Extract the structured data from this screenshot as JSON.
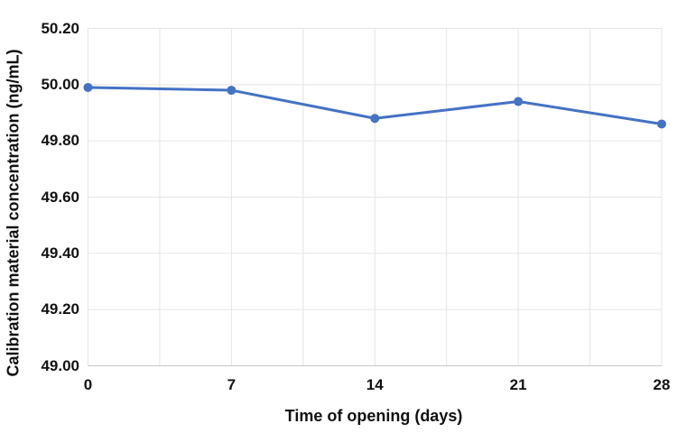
{
  "chart_data": {
    "type": "line",
    "x": [
      0,
      7,
      14,
      21,
      28
    ],
    "values": [
      49.99,
      49.98,
      49.88,
      49.94,
      49.86
    ],
    "xlabel": "Time of opening (days)",
    "ylabel": "Calibration material concentration (ng/mL)",
    "xlim": [
      0,
      28
    ],
    "ylim": [
      49.0,
      50.2
    ],
    "x_ticks": [
      0,
      7,
      14,
      21,
      28
    ],
    "x_tick_labels": [
      "0",
      "7",
      "14",
      "21",
      "28"
    ],
    "x_gridline_step": 3.5,
    "y_ticks": [
      50.2,
      50.0,
      49.8,
      49.6,
      49.4,
      49.2,
      49.0
    ],
    "y_tick_labels": [
      "50.20",
      "50.00",
      "49.80",
      "49.60",
      "49.40",
      "49.20",
      "49.00"
    ],
    "grid": true,
    "legend": "none",
    "marker": "circle",
    "colors": {
      "line": "#4472C4",
      "marker": "#4472C4",
      "gridline": "#E4E4E4",
      "axis_line": "#C9C9C9",
      "text": "#111111",
      "background": "#FFFFFF"
    }
  }
}
